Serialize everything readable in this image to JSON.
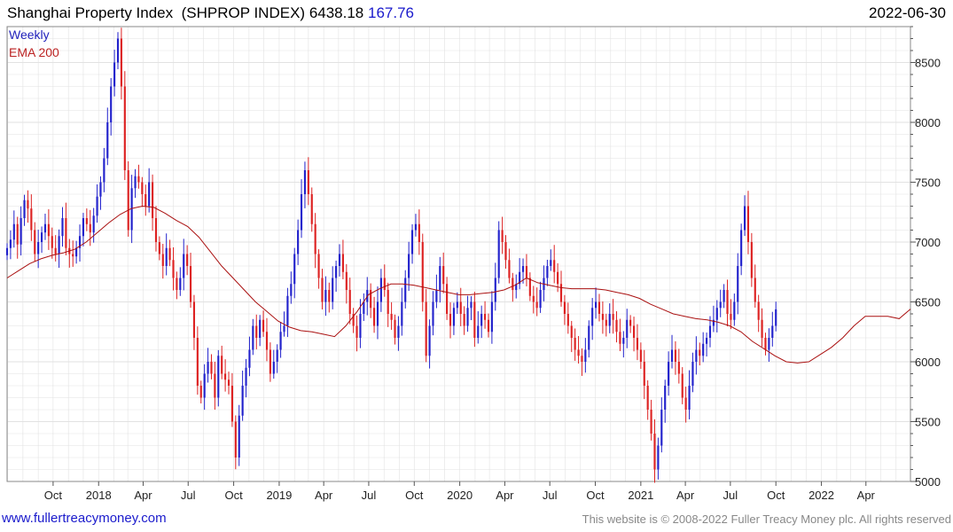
{
  "header": {
    "name": "Shanghai Property Index",
    "ticker": "(SHPROP INDEX)",
    "last": "6438.18",
    "change": "167.76",
    "date": "2022-06-30"
  },
  "legend": {
    "interval": "Weekly",
    "ema": "EMA 200"
  },
  "footer": {
    "url": "www.fullertreacymoney.com",
    "copyright": "This website is © 2008-2022 Fuller Treacy Money plc. All rights reserved"
  },
  "colors": {
    "up": "#2222cc",
    "down": "#dd2222",
    "ema": "#aa1111",
    "grid": "#e2e2e2"
  },
  "chart_data": {
    "type": "candlestick",
    "interval": "weekly",
    "y_axis": {
      "side": "right",
      "ylim": [
        5000,
        8800
      ],
      "ticks": [
        5000,
        5500,
        6000,
        6500,
        7000,
        7500,
        8000,
        8500
      ]
    },
    "x_axis": {
      "range": [
        "2017-06-30",
        "2022-06-30"
      ],
      "ticks": [
        {
          "date": "2017-10-01",
          "label": "Oct"
        },
        {
          "date": "2018-01-01",
          "label": "2018"
        },
        {
          "date": "2018-04-01",
          "label": "Apr"
        },
        {
          "date": "2018-07-01",
          "label": "Jul"
        },
        {
          "date": "2018-10-01",
          "label": "Oct"
        },
        {
          "date": "2019-01-01",
          "label": "2019"
        },
        {
          "date": "2019-04-01",
          "label": "Apr"
        },
        {
          "date": "2019-07-01",
          "label": "Jul"
        },
        {
          "date": "2019-10-01",
          "label": "Oct"
        },
        {
          "date": "2020-01-01",
          "label": "2020"
        },
        {
          "date": "2020-04-01",
          "label": "Apr"
        },
        {
          "date": "2020-07-01",
          "label": "Jul"
        },
        {
          "date": "2020-10-01",
          "label": "Oct"
        },
        {
          "date": "2021-01-01",
          "label": "2021"
        },
        {
          "date": "2021-04-01",
          "label": "Apr"
        },
        {
          "date": "2021-07-01",
          "label": "Jul"
        },
        {
          "date": "2021-10-01",
          "label": "Oct"
        },
        {
          "date": "2022-01-01",
          "label": "2022"
        },
        {
          "date": "2022-04-01",
          "label": "Apr"
        }
      ]
    },
    "series": [
      {
        "type": "ohlc",
        "date_step_days": 7,
        "close": [
          6950,
          7020,
          7150,
          6980,
          7200,
          7350,
          7280,
          7100,
          6900,
          7000,
          7080,
          7150,
          7050,
          6950,
          6900,
          7050,
          7200,
          6950,
          6900,
          6880,
          6950,
          7050,
          7200,
          7150,
          7080,
          7220,
          7380,
          7500,
          7700,
          8000,
          8300,
          8500,
          8700,
          8300,
          7600,
          7100,
          7450,
          7550,
          7500,
          7400,
          7300,
          7500,
          7200,
          7000,
          6900,
          6800,
          6950,
          6850,
          6700,
          6600,
          6700,
          6900,
          6800,
          6500,
          6200,
          5800,
          5700,
          5900,
          6000,
          5900,
          5700,
          6050,
          5900,
          5850,
          5800,
          5500,
          5200,
          5550,
          5800,
          5950,
          6100,
          6300,
          6200,
          6350,
          6250,
          6100,
          5900,
          6000,
          6100,
          6250,
          6300,
          6550,
          6650,
          6900,
          7100,
          7400,
          7600,
          7400,
          7150,
          6900,
          6700,
          6500,
          6600,
          6500,
          6700,
          6800,
          6900,
          6750,
          6600,
          6400,
          6300,
          6200,
          6400,
          6500,
          6600,
          6450,
          6300,
          6500,
          6700,
          6600,
          6400,
          6350,
          6200,
          6300,
          6500,
          6700,
          6900,
          7100,
          7150,
          7000,
          6500,
          6050,
          6300,
          6500,
          6600,
          6800,
          6650,
          6400,
          6300,
          6450,
          6500,
          6400,
          6300,
          6450,
          6500,
          6200,
          6300,
          6400,
          6350,
          6250,
          6500,
          6700,
          7100,
          7000,
          6850,
          6700,
          6600,
          6650,
          6750,
          6800,
          6700,
          6550,
          6500,
          6450,
          6600,
          6700,
          6800,
          6850,
          6750,
          6650,
          6500,
          6400,
          6300,
          6200,
          6100,
          6050,
          6000,
          6100,
          6300,
          6450,
          6500,
          6400,
          6350,
          6300,
          6400,
          6350,
          6250,
          6150,
          6200,
          6350,
          6300,
          6200,
          6100,
          6000,
          5800,
          5600,
          5400,
          5100,
          5300,
          5600,
          5800,
          6000,
          6100,
          6000,
          5900,
          5700,
          5600,
          5800,
          6000,
          6100,
          6050,
          6150,
          6200,
          6300,
          6350,
          6450,
          6500,
          6600,
          6400,
          6350,
          6500,
          6800,
          7100,
          7300,
          7000,
          6700,
          6500,
          6350,
          6200,
          6100,
          6200,
          6300,
          6438
        ]
      },
      {
        "type": "line",
        "label": "EMA 200",
        "values": [
          6700,
          6760,
          6820,
          6860,
          6890,
          6910,
          6940,
          7000,
          7080,
          7160,
          7230,
          7280,
          7300,
          7290,
          7240,
          7180,
          7130,
          7040,
          6920,
          6800,
          6700,
          6600,
          6500,
          6420,
          6340,
          6290,
          6260,
          6250,
          6230,
          6210,
          6300,
          6420,
          6560,
          6610,
          6650,
          6650,
          6640,
          6620,
          6600,
          6580,
          6560,
          6560,
          6570,
          6580,
          6600,
          6640,
          6700,
          6660,
          6640,
          6620,
          6610,
          6610,
          6610,
          6600,
          6580,
          6560,
          6530,
          6480,
          6440,
          6400,
          6380,
          6360,
          6350,
          6330,
          6300,
          6250,
          6170,
          6110,
          6050,
          6000,
          5990,
          6000,
          6060,
          6120,
          6200,
          6300,
          6380,
          6380,
          6380,
          6360,
          6440
        ]
      }
    ]
  }
}
